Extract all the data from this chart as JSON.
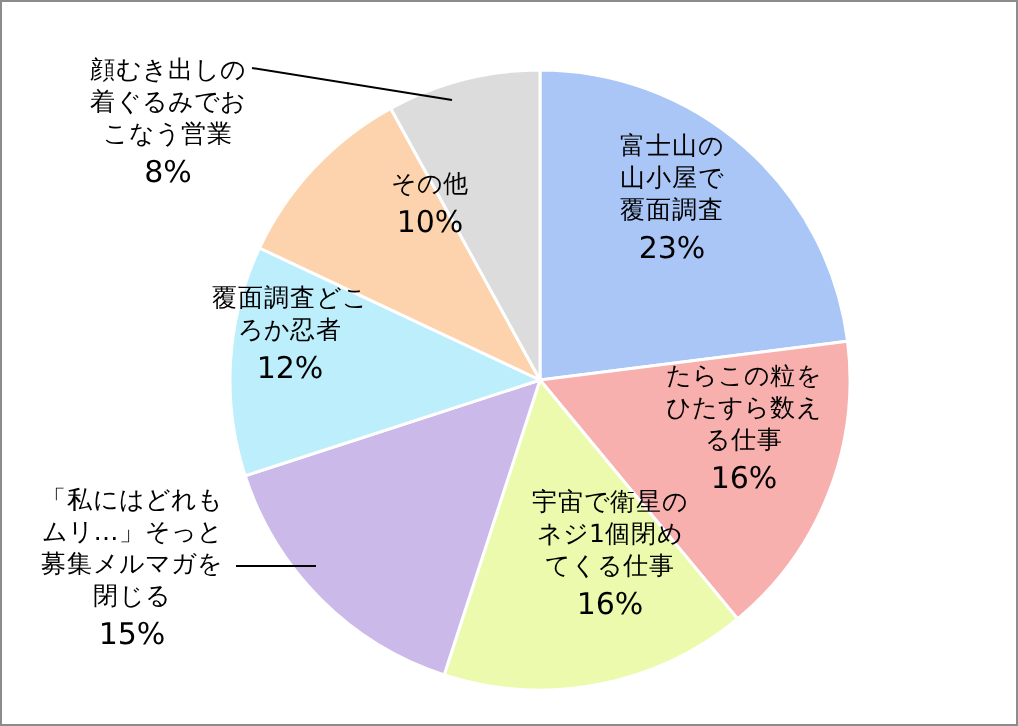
{
  "chart_data": {
    "type": "pie",
    "categories": [
      "富士山の山小屋で覆面調査",
      "たらこの粒をひたすら数える仕事",
      "宇宙で衛星のネジ1個閉めてくる仕事",
      "「私にはどれもムリ…」そっと募集メルマガを閉じる",
      "覆面調査どころか忍者",
      "その他",
      "顔むき出しの着ぐるみでおこなう営業"
    ],
    "values": [
      23,
      16,
      16,
      15,
      12,
      10,
      8
    ],
    "colors": [
      "#a9c6f7",
      "#f7b0ae",
      "#ecfaae",
      "#cbb9ea",
      "#bdeefb",
      "#fdd3ae",
      "#dcdcdc"
    ],
    "value_labels": [
      "23%",
      "16%",
      "16%",
      "15%",
      "12%",
      "10%",
      "8%"
    ]
  }
}
